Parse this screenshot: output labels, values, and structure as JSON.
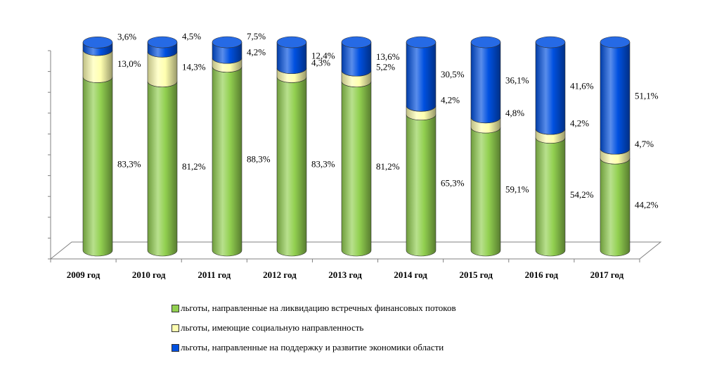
{
  "chart_data": {
    "type": "bar",
    "stacked": true,
    "style": "3d-cylinder",
    "categories": [
      "2009 год",
      "2010 год",
      "2011 год",
      "2012 год",
      "2013 год",
      "2014 год",
      "2015 год",
      "2016 год",
      "2017 год"
    ],
    "series": [
      {
        "name": "льготы, направленные на ликвидацию встречных финансовых потоков",
        "color": "#92D050",
        "values": [
          83.3,
          81.2,
          88.3,
          83.3,
          81.2,
          65.3,
          59.1,
          54.2,
          44.2
        ],
        "labels": [
          "83,3%",
          "81,2%",
          "88,3%",
          "83,3%",
          "81,2%",
          "65,3%",
          "59,1%",
          "54,2%",
          "44,2%"
        ]
      },
      {
        "name": "льготы, имеющие социальную направленность",
        "color": "#FFFFB0",
        "values": [
          13.0,
          14.3,
          4.2,
          4.3,
          5.2,
          4.2,
          4.8,
          4.2,
          4.7
        ],
        "labels": [
          "13,0%",
          "14,3%",
          "4,2%",
          "4,3%",
          "5,2%",
          "4,2%",
          "4,8%",
          "4,2%",
          "4,7%"
        ]
      },
      {
        "name": "льготы, направленные на поддержку и развитие экономики области",
        "color": "#0050E0",
        "values": [
          3.6,
          4.5,
          7.5,
          12.4,
          13.6,
          30.5,
          36.1,
          41.6,
          51.1
        ],
        "labels": [
          "3,6%",
          "4,5%",
          "7,5%",
          "12,4%",
          "13,6%",
          "30,5%",
          "36,1%",
          "41,6%",
          "51,1%"
        ]
      }
    ],
    "ylim": [
      0,
      100
    ],
    "gridlines": false,
    "legend_position": "bottom",
    "title": "",
    "xlabel": "",
    "ylabel": ""
  }
}
